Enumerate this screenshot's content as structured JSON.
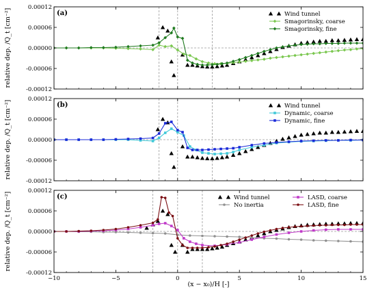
{
  "figure": {
    "xlabel": "(x − x₀)/H [-]",
    "ylabel": "relative dep. /Q_t [cm⁻²]",
    "xticks": [
      -10,
      -5,
      0,
      5,
      10,
      15
    ],
    "yticks": [
      -0.00012,
      -6e-05,
      0.0,
      6e-05,
      0.00012
    ],
    "ytick_labels": [
      "-0.00012",
      "-0.00006",
      "0.00000",
      "0.00006",
      "0.00012"
    ],
    "xlim": [
      -10,
      15
    ],
    "ylim": [
      -0.00012,
      0.00012
    ]
  },
  "chart_data": [
    {
      "type": "line",
      "panel": "(a)",
      "xlim": [
        -10,
        15
      ],
      "ylim": [
        -0.00012,
        0.00012
      ],
      "grid": "dashed reference lines at y=0 and x=-1.5, 0, 2.8",
      "vlines": [
        -1.5,
        0,
        2.8
      ],
      "legend_placement": "top-right",
      "series": [
        {
          "name": "Wind tunnel",
          "style": "markers",
          "marker": "triangle",
          "color": "#000000",
          "x": [
            -1.6,
            -1.2,
            -0.8,
            -0.5,
            -0.3,
            0.4,
            0.8,
            1.2,
            1.6,
            2.0,
            2.4,
            2.8,
            3.2,
            3.6,
            4.0,
            4.5,
            5,
            5.5,
            6,
            6.5,
            7,
            7.5,
            8,
            8.5,
            9,
            9.5,
            10,
            10.5,
            11,
            11.5,
            12,
            12.5,
            13,
            13.5,
            14,
            14.5,
            15
          ],
          "y": [
            3e-05,
            6e-05,
            5e-05,
            -4e-05,
            -8e-05,
            -2e-05,
            -5e-05,
            -5e-05,
            -5.2e-05,
            -5.4e-05,
            -5.5e-05,
            -5.5e-05,
            -5.4e-05,
            -5.2e-05,
            -5e-05,
            -4.5e-05,
            -4e-05,
            -3.4e-05,
            -2.8e-05,
            -2.2e-05,
            -1.6e-05,
            -1e-05,
            -4e-06,
            2e-06,
            6e-06,
            1e-05,
            1.4e-05,
            1.6e-05,
            1.8e-05,
            2e-05,
            2e-05,
            2.2e-05,
            2.2e-05,
            2.3e-05,
            2.4e-05,
            2.5e-05,
            2.5e-05
          ]
        },
        {
          "name": "Smagorinsky, coarse",
          "style": "line+markers",
          "marker": "diamond",
          "color": "#7ac74f",
          "x": [
            -10,
            -9,
            -8,
            -7,
            -6,
            -5,
            -4,
            -3,
            -2,
            -1.5,
            -1,
            -0.5,
            0,
            0.5,
            1,
            1.5,
            2,
            2.5,
            3,
            3.5,
            4,
            4.5,
            5,
            5.5,
            6,
            6.5,
            7,
            7.5,
            8,
            8.5,
            9,
            9.5,
            10,
            10.5,
            11,
            11.5,
            12,
            12.5,
            13,
            13.5,
            14,
            14.5,
            15
          ],
          "y": [
            0,
            0,
            0,
            0,
            0,
            -1e-06,
            -2e-06,
            -3e-06,
            -5e-06,
            8e-06,
            4e-06,
            6e-06,
            -6e-06,
            -1.8e-05,
            -2.2e-05,
            -3.2e-05,
            -4e-05,
            -4.4e-05,
            -4.6e-05,
            -4.6e-05,
            -4.5e-05,
            -4.3e-05,
            -4.1e-05,
            -3.9e-05,
            -3.7e-05,
            -3.5e-05,
            -3.3e-05,
            -3e-05,
            -2.8e-05,
            -2.6e-05,
            -2.4e-05,
            -2.2e-05,
            -2e-05,
            -1.8e-05,
            -1.6e-05,
            -1.4e-05,
            -1.2e-05,
            -1e-05,
            -8e-06,
            -6e-06,
            -5e-06,
            -3e-06,
            -2e-06
          ]
        },
        {
          "name": "Smagorinsky, fine",
          "style": "line+markers",
          "marker": "diamond",
          "color": "#1f7a1f",
          "x": [
            -10,
            -9,
            -8,
            -7,
            -6,
            -5,
            -4,
            -3,
            -2,
            -1.5,
            -1,
            -0.5,
            -0.3,
            0,
            0.4,
            0.8,
            1.2,
            1.6,
            2,
            2.4,
            2.8,
            3.2,
            3.6,
            4,
            4.5,
            5,
            5.5,
            6,
            6.5,
            7,
            7.5,
            8,
            8.5,
            9,
            9.5,
            10,
            10.5,
            11,
            11.5,
            12,
            12.5,
            13,
            13.5,
            14,
            14.5,
            15
          ],
          "y": [
            0,
            0,
            0,
            1e-06,
            1e-06,
            2e-06,
            4e-06,
            6e-06,
            8e-06,
            1.5e-05,
            3e-05,
            4.4e-05,
            5.8e-05,
            3.2e-05,
            2.8e-05,
            -3.6e-05,
            -4.4e-05,
            -4.8e-05,
            -5e-05,
            -5e-05,
            -4.9e-05,
            -4.8e-05,
            -4.6e-05,
            -4.4e-05,
            -3.9e-05,
            -3.4e-05,
            -2.8e-05,
            -2.2e-05,
            -1.6e-05,
            -1e-05,
            -5e-06,
            0,
            3e-06,
            6e-06,
            8e-06,
            1e-05,
            1.1e-05,
            1.2e-05,
            1.2e-05,
            1.3e-05,
            1.3e-05,
            1.3e-05,
            1.4e-05,
            1.4e-05,
            1.4e-05,
            1.4e-05
          ]
        }
      ]
    },
    {
      "type": "line",
      "panel": "(b)",
      "xlim": [
        -10,
        15
      ],
      "ylim": [
        -0.00012,
        0.00012
      ],
      "vlines": [
        -1.5,
        0,
        2.8
      ],
      "legend_placement": "top-right",
      "series": [
        {
          "name": "Wind tunnel",
          "style": "markers",
          "marker": "triangle",
          "color": "#000000",
          "x": [
            -1.6,
            -1.2,
            -0.8,
            -0.5,
            -0.3,
            0.4,
            0.8,
            1.2,
            1.6,
            2.0,
            2.4,
            2.8,
            3.2,
            3.6,
            4.0,
            4.5,
            5,
            5.5,
            6,
            6.5,
            7,
            7.5,
            8,
            8.5,
            9,
            9.5,
            10,
            10.5,
            11,
            11.5,
            12,
            12.5,
            13,
            13.5,
            14,
            14.5,
            15
          ],
          "y": [
            3e-05,
            6e-05,
            5e-05,
            -4e-05,
            -8e-05,
            -2e-05,
            -5e-05,
            -5e-05,
            -5.2e-05,
            -5.4e-05,
            -5.5e-05,
            -5.5e-05,
            -5.4e-05,
            -5.2e-05,
            -5e-05,
            -4.5e-05,
            -4e-05,
            -3.4e-05,
            -2.8e-05,
            -2.2e-05,
            -1.6e-05,
            -1e-05,
            -4e-06,
            2e-06,
            6e-06,
            1e-05,
            1.4e-05,
            1.6e-05,
            1.8e-05,
            2e-05,
            2e-05,
            2.2e-05,
            2.2e-05,
            2.3e-05,
            2.4e-05,
            2.5e-05,
            2.5e-05
          ]
        },
        {
          "name": "Dynamic, coarse",
          "style": "line+markers",
          "marker": "square",
          "color": "#3fc8d8",
          "x": [
            -10,
            -9,
            -8,
            -7,
            -6,
            -5,
            -4,
            -3,
            -2,
            -1.5,
            -1,
            -0.5,
            0,
            0.5,
            1,
            1.5,
            2,
            2.5,
            3,
            3.5,
            4,
            4.5,
            5,
            6,
            7,
            8,
            9,
            10,
            11,
            12,
            13,
            14,
            15
          ],
          "y": [
            0,
            0,
            0,
            0,
            0,
            0,
            0,
            -2e-06,
            -4e-06,
            5e-06,
            2e-05,
            3.2e-05,
            2.2e-05,
            1.2e-05,
            -2e-05,
            -3e-05,
            -3.8e-05,
            -4e-05,
            -4.2e-05,
            -4.1e-05,
            -4e-05,
            -3.6e-05,
            -3e-05,
            -2.2e-05,
            -1.6e-05,
            -1e-05,
            -7e-06,
            -5e-06,
            -4e-06,
            -3e-06,
            -2e-06,
            -2e-06,
            -1e-06
          ]
        },
        {
          "name": "Dynamic, fine",
          "style": "line+markers",
          "marker": "square",
          "color": "#1a2ad8",
          "x": [
            -10,
            -9,
            -8,
            -7,
            -6,
            -5,
            -4,
            -3,
            -2,
            -1.5,
            -1,
            -0.5,
            0,
            0.4,
            0.8,
            1.2,
            1.6,
            2,
            2.5,
            3,
            3.5,
            4,
            4.5,
            5,
            6,
            7,
            8,
            9,
            10,
            11,
            12,
            13,
            14,
            15
          ],
          "y": [
            0,
            0,
            0,
            0,
            0,
            1e-06,
            2e-06,
            3e-06,
            5e-06,
            1.8e-05,
            4.8e-05,
            5.2e-05,
            2.8e-05,
            2.2e-05,
            -2.4e-05,
            -3e-05,
            -3e-05,
            -3e-05,
            -2.9e-05,
            -2.8e-05,
            -2.7e-05,
            -2.6e-05,
            -2.5e-05,
            -2.2e-05,
            -1.6e-05,
            -1.1e-05,
            -8e-06,
            -6e-06,
            -4e-06,
            -3e-06,
            -2e-06,
            -2e-06,
            -1e-06,
            -1e-06
          ]
        }
      ]
    },
    {
      "type": "line",
      "panel": "(c)",
      "xlim": [
        -10,
        15
      ],
      "ylim": [
        -0.00012,
        0.00012
      ],
      "vlines": [
        -2,
        0,
        2
      ],
      "legend_placement": "top-right",
      "series": [
        {
          "name": "Wind tunnel",
          "style": "markers",
          "marker": "triangle",
          "color": "#000000",
          "x": [
            -2.5,
            -2.0,
            -1.6,
            -1.2,
            -0.8,
            -0.5,
            -0.2,
            0.4,
            0.8,
            1.2,
            1.6,
            2.0,
            2.4,
            2.8,
            3.2,
            3.6,
            4.0,
            4.5,
            5,
            5.5,
            6,
            6.5,
            7,
            7.5,
            8,
            8.5,
            9,
            9.5,
            10,
            10.5,
            11,
            11.5,
            12,
            12.5,
            13,
            13.5,
            14,
            14.5,
            15
          ],
          "y": [
            1e-05,
            2e-05,
            3e-05,
            6e-05,
            5e-05,
            -4e-05,
            -6e-05,
            -4e-05,
            -6e-05,
            -5.2e-05,
            -5.2e-05,
            -5.2e-05,
            -5.2e-05,
            -5e-05,
            -4.8e-05,
            -4.5e-05,
            -4e-05,
            -3.5e-05,
            -3e-05,
            -2.4e-05,
            -1.8e-05,
            -1.2e-05,
            -6e-06,
            0,
            4e-06,
            8e-06,
            1.2e-05,
            1.5e-05,
            1.7e-05,
            1.9e-05,
            2e-05,
            2.1e-05,
            2.2e-05,
            2.2e-05,
            2.3e-05,
            2.3e-05,
            2.4e-05,
            2.4e-05,
            2.4e-05
          ]
        },
        {
          "name": "No inertia",
          "style": "line+markers",
          "marker": "circle",
          "color": "#909090",
          "x": [
            -10,
            -9,
            -8,
            -7,
            -6,
            -5,
            -4,
            -3,
            -2,
            -1,
            0,
            1,
            2,
            3,
            4,
            5,
            6,
            7,
            8,
            9,
            10,
            11,
            12,
            13,
            14,
            15
          ],
          "y": [
            0,
            0,
            -1e-06,
            -1e-06,
            -2e-06,
            -2e-06,
            -3e-06,
            -4e-06,
            -5e-06,
            -6e-06,
            -1e-05,
            -1.2e-05,
            -1.3e-05,
            -1.4e-05,
            -1.5e-05,
            -1.6e-05,
            -1.8e-05,
            -2e-05,
            -2.1e-05,
            -2.3e-05,
            -2.4e-05,
            -2.6e-05,
            -2.7e-05,
            -2.8e-05,
            -2.9e-05,
            -3e-05
          ]
        },
        {
          "name": "LASD, coarse",
          "style": "line+markers",
          "marker": "square",
          "color": "#c03ac8",
          "x": [
            -10,
            -9,
            -8,
            -7,
            -6,
            -5,
            -4,
            -3,
            -2,
            -1.5,
            -1,
            -0.5,
            0,
            0.5,
            1,
            1.5,
            2,
            3,
            4,
            5,
            6,
            7,
            8,
            9,
            10,
            11,
            12,
            13,
            14,
            15
          ],
          "y": [
            0,
            0,
            0,
            1e-06,
            2e-06,
            4e-06,
            7e-06,
            1.2e-05,
            1.8e-05,
            2.2e-05,
            2.4e-05,
            1.6e-05,
            4e-06,
            -2e-05,
            -3e-05,
            -3.6e-05,
            -4e-05,
            -4.2e-05,
            -3.8e-05,
            -3.2e-05,
            -2.4e-05,
            -1.6e-05,
            -9e-06,
            -4e-06,
            0,
            3e-06,
            5e-06,
            6e-06,
            6e-06,
            6e-06
          ]
        },
        {
          "name": "LASD, fine",
          "style": "line+markers",
          "marker": "circle",
          "color": "#7a0d12",
          "x": [
            -10,
            -9,
            -8,
            -7,
            -6,
            -5,
            -4,
            -3,
            -2,
            -1.6,
            -1.3,
            -1,
            -0.7,
            -0.4,
            0,
            0.4,
            0.8,
            1.2,
            1.6,
            2,
            2.5,
            3,
            3.5,
            4,
            4.5,
            5,
            5.5,
            6,
            6.5,
            7,
            7.5,
            8,
            8.5,
            9,
            9.5,
            10,
            10.5,
            11,
            11.5,
            12,
            12.5,
            13,
            13.5,
            14,
            14.5,
            15
          ],
          "y": [
            0,
            0,
            1e-06,
            2e-06,
            4e-06,
            7e-06,
            1.2e-05,
            1.8e-05,
            2.5e-05,
            3.5e-05,
            0.0001,
            9.8e-05,
            5.5e-05,
            4.5e-05,
            -2e-05,
            -4e-05,
            -4.8e-05,
            -4.8e-05,
            -4.8e-05,
            -4.8e-05,
            -4.6e-05,
            -4.4e-05,
            -4e-05,
            -3.6e-05,
            -3e-05,
            -2.4e-05,
            -1.8e-05,
            -1.2e-05,
            -6e-06,
            -1e-06,
            3e-06,
            7e-06,
            1e-05,
            1.2e-05,
            1.4e-05,
            1.5e-05,
            1.6e-05,
            1.7e-05,
            1.8e-05,
            1.8e-05,
            1.9e-05,
            1.9e-05,
            1.9e-05,
            2e-05,
            2e-05,
            2e-05
          ]
        }
      ]
    }
  ]
}
